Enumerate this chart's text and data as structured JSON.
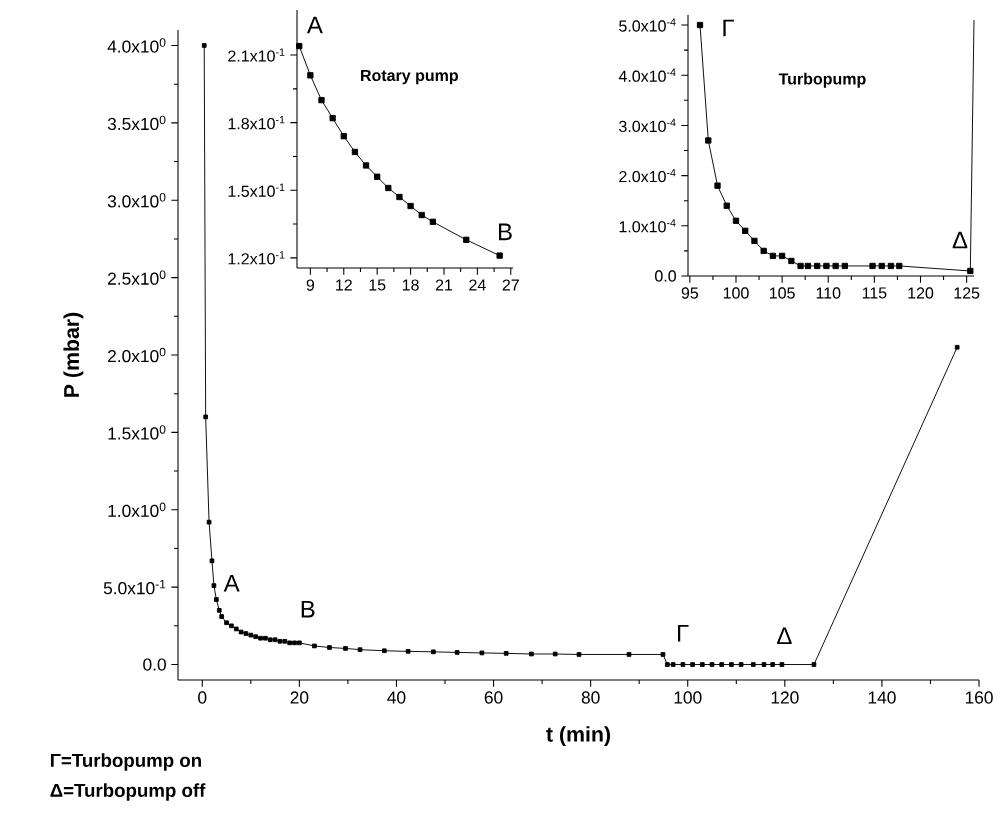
{
  "chart_data": [
    {
      "type": "line",
      "xlabel": "t (min)",
      "ylabel": "P (mbar)",
      "xlim": [
        -5,
        160
      ],
      "xticks": [
        0,
        20,
        40,
        60,
        80,
        100,
        120,
        140,
        160
      ],
      "ylim": [
        -0.1,
        4.1
      ],
      "yticks": [
        {
          "value": 0,
          "label": "0.0"
        },
        {
          "value": 0.5,
          "label": "5.0x10$^{-1}$"
        },
        {
          "value": 1.0,
          "label": "1.0x10$^{0}$"
        },
        {
          "value": 1.5,
          "label": "1.5x10$^{0}$"
        },
        {
          "value": 2.0,
          "label": "2.0x10$^{0}$"
        },
        {
          "value": 2.5,
          "label": "2.5x10$^{0}$"
        },
        {
          "value": 3.0,
          "label": "3.0x10$^{0}$"
        },
        {
          "value": 3.5,
          "label": "3.5x10$^{0}$"
        },
        {
          "value": 4.0,
          "label": "4.0x10$^{0}$"
        }
      ],
      "marker": "square",
      "series": [
        {
          "color": "#000000",
          "x": [
            0.4,
            0.7,
            1.4,
            2.0,
            2.4,
            2.9,
            3.5,
            4,
            5,
            6,
            7,
            8,
            9,
            10,
            11,
            12,
            13,
            14,
            15,
            16,
            17,
            18,
            19,
            20,
            23.1,
            26.2,
            29.5,
            32.5,
            37.5,
            42.4,
            47.6,
            52.5,
            57.6,
            62.6,
            67.8,
            72.7,
            77.6,
            87.9,
            94.9,
            95.8,
            97,
            99,
            101,
            103,
            105,
            107,
            109,
            111,
            113.5,
            115.7,
            117.5,
            119.4,
            126,
            155.5
          ],
          "values": [
            4.0,
            1.6,
            0.92,
            0.67,
            0.51,
            0.42,
            0.35,
            0.31,
            0.27,
            0.25,
            0.23,
            0.21,
            0.2,
            0.19,
            0.18,
            0.17,
            0.17,
            0.16,
            0.16,
            0.15,
            0.15,
            0.14,
            0.14,
            0.14,
            0.12,
            0.11,
            0.104,
            0.096,
            0.089,
            0.085,
            0.082,
            0.078,
            0.075,
            0.072,
            0.068,
            0.068,
            0.065,
            0.065,
            0.065,
            0,
            0,
            0,
            0,
            0,
            0,
            0,
            0,
            0,
            0,
            0,
            0,
            0,
            0,
            2.05
          ]
        }
      ],
      "annotations": [
        "A",
        "B",
        "Γ",
        "Δ",
        "Γ=Turbopump on",
        "Δ=Turbopump off"
      ]
    },
    {
      "type": "line",
      "title": "Rotary pump",
      "xlim": [
        7.8,
        27.2
      ],
      "xticks": [
        9,
        12,
        15,
        18,
        21,
        24,
        27
      ],
      "ylim": [
        0.1155,
        0.23
      ],
      "yticks": [
        {
          "value": 0.12,
          "label": "1.2x10$^{-1}$"
        },
        {
          "value": 0.15,
          "label": "1.5x10$^{-1}$"
        },
        {
          "value": 0.18,
          "label": "1.8x10$^{-1}$"
        },
        {
          "value": 0.21,
          "label": "2.1x10$^{-1}$"
        }
      ],
      "marker": "square",
      "series": [
        {
          "color": "#000000",
          "x": [
            8,
            9,
            10,
            11,
            12,
            13,
            14,
            15,
            16,
            17,
            18,
            19,
            20,
            23,
            26
          ],
          "values": [
            0.214,
            0.201,
            0.19,
            0.182,
            0.174,
            0.167,
            0.161,
            0.156,
            0.151,
            0.147,
            0.143,
            0.139,
            0.136,
            0.128,
            0.121
          ]
        }
      ],
      "annotations": [
        "A",
        "B"
      ]
    },
    {
      "type": "line",
      "title": "Turbopump",
      "xlim": [
        94.8,
        125.8
      ],
      "xticks": [
        95,
        100,
        105,
        110,
        115,
        120,
        125
      ],
      "ylim": [
        0,
        0.00052
      ],
      "yticks": [
        {
          "value": 0,
          "label": "0.0"
        },
        {
          "value": 0.0001,
          "label": "1.0x10$^{-4}$"
        },
        {
          "value": 0.0002,
          "label": "2.0x10$^{-4}$"
        },
        {
          "value": 0.0003,
          "label": "3.0x10$^{-4}$"
        },
        {
          "value": 0.0004,
          "label": "4.0x10$^{-4}$"
        },
        {
          "value": 0.0005,
          "label": "5.0x10$^{-4}$"
        }
      ],
      "marker": "square",
      "series": [
        {
          "color": "#000000",
          "x": [
            96.1,
            97,
            98,
            99,
            100,
            101,
            102,
            103,
            104,
            105,
            106,
            107,
            107.8,
            108.8,
            109.8,
            110.8,
            111.8,
            114.8,
            115.8,
            116.8,
            117.7,
            125.4
          ],
          "values": [
            0.0005,
            0.00027,
            0.00018,
            0.00014,
            0.00011,
            9e-05,
            7e-05,
            5e-05,
            4e-05,
            4e-05,
            3e-05,
            2e-05,
            2e-05,
            2e-05,
            2e-05,
            2e-05,
            2e-05,
            2e-05,
            2e-05,
            2e-05,
            2e-05,
            1e-05
          ]
        },
        {
          "color": "#000000",
          "marker": "none",
          "x": [
            125.4,
            125.8
          ],
          "values": [
            1e-05,
            0.00051
          ]
        }
      ],
      "annotations": [
        "Γ",
        "Δ"
      ]
    }
  ]
}
